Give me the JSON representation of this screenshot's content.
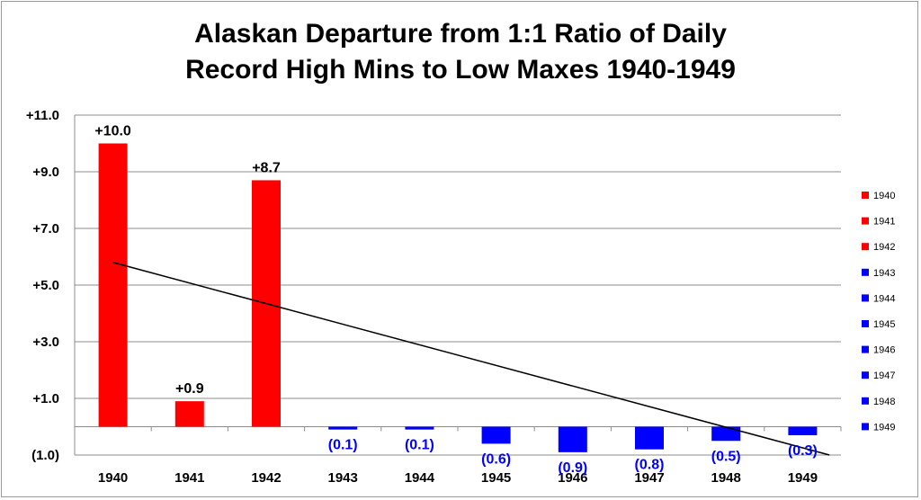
{
  "chart_data": {
    "type": "bar",
    "title_line1": "Alaskan Departure from 1:1 Ratio of Daily",
    "title_line2": "Record High Mins to Low Maxes 1940-1949",
    "categories": [
      "1940",
      "1941",
      "1942",
      "1943",
      "1944",
      "1945",
      "1946",
      "1947",
      "1948",
      "1949"
    ],
    "values": [
      10.0,
      0.9,
      8.7,
      -0.1,
      -0.1,
      -0.6,
      -0.9,
      -0.8,
      -0.5,
      -0.3
    ],
    "data_labels": [
      "+10.0",
      "+0.9",
      "+8.7",
      "(0.1)",
      "(0.1)",
      "(0.6)",
      "(0.9)",
      "(0.8)",
      "(0.5)",
      "(0.3)"
    ],
    "colors": [
      "#ff0000",
      "#ff0000",
      "#ff0000",
      "#0000ff",
      "#0000ff",
      "#0000ff",
      "#0000ff",
      "#0000ff",
      "#0000ff",
      "#0000ff"
    ],
    "ylim": [
      -1.0,
      11.0
    ],
    "y_ticks": [
      11.0,
      9.0,
      7.0,
      5.0,
      3.0,
      1.0,
      -1.0
    ],
    "y_tick_labels": [
      "+11.0",
      "+9.0",
      "+7.0",
      "+5.0",
      "+3.0",
      "+1.0",
      "(1.0)"
    ],
    "grid": true,
    "legend_position": "right",
    "legend": [
      "1940",
      "1941",
      "1942",
      "1943",
      "1944",
      "1945",
      "1946",
      "1947",
      "1948",
      "1949"
    ],
    "trendline": {
      "type": "linear",
      "start": [
        0,
        5.8
      ],
      "end": [
        9.35,
        -1.0
      ],
      "color": "#000000"
    }
  }
}
